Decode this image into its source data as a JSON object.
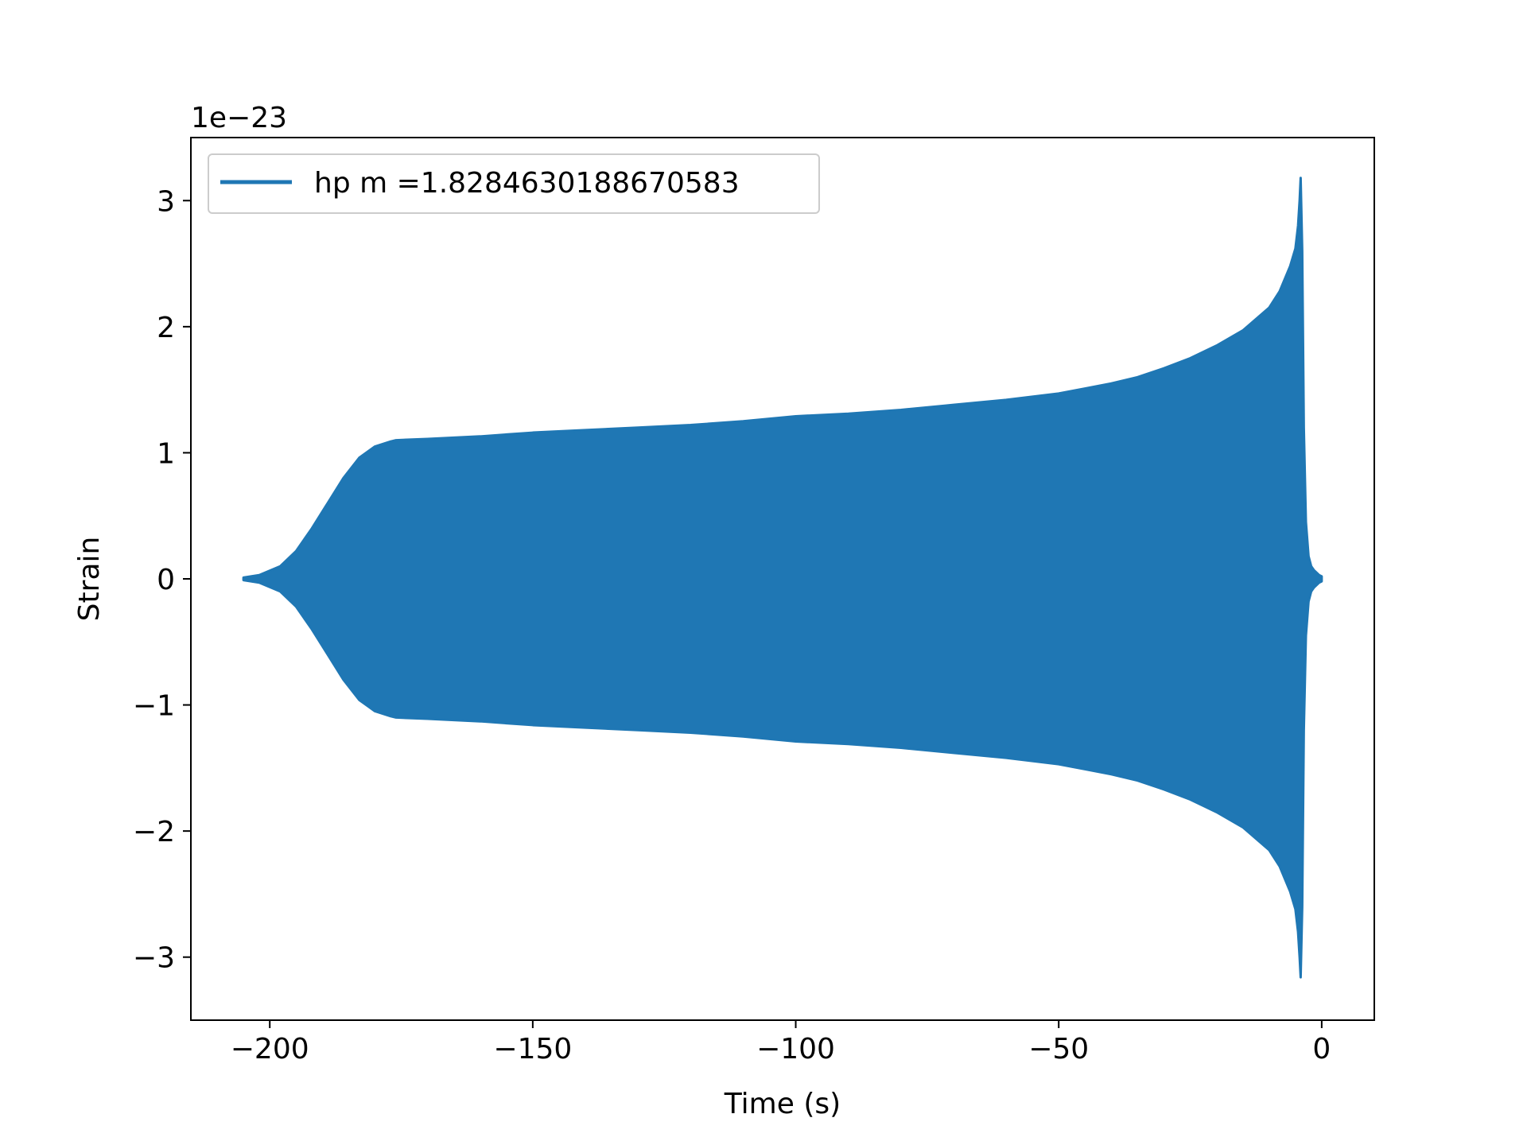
{
  "chart_data": {
    "type": "line",
    "xlabel": "Time (s)",
    "ylabel": "Strain",
    "y_offset_text": "1e−23",
    "xlim": [
      -215,
      10
    ],
    "ylim": [
      -3.5,
      3.5
    ],
    "x_ticks": [
      -200,
      -150,
      -100,
      -50,
      0
    ],
    "x_tick_labels": [
      "−200",
      "−150",
      "−100",
      "−50",
      "0"
    ],
    "y_ticks": [
      -3,
      -2,
      -1,
      0,
      1,
      2,
      3
    ],
    "y_tick_labels": [
      "−3",
      "−2",
      "−1",
      "0",
      "1",
      "2",
      "3"
    ],
    "grid": false,
    "legend_position": "upper-left",
    "series": [
      {
        "name": "hp m =1.8284630188670583",
        "color": "#1f77b4",
        "envelope": {
          "x": [
            -205,
            -202,
            -198,
            -195,
            -192,
            -189,
            -186,
            -183,
            -180,
            -177,
            -176,
            -170,
            -160,
            -150,
            -140,
            -130,
            -120,
            -110,
            -105,
            -100,
            -90,
            -80,
            -70,
            -60,
            -50,
            -45,
            -40,
            -35,
            -30,
            -25,
            -20,
            -15,
            -10,
            -8,
            -6,
            -5,
            -4.5,
            -4.2,
            -4,
            -3.7,
            -3.4,
            -3,
            -2.5,
            -2,
            -1.5,
            -1,
            -0.5,
            0
          ],
          "upper": [
            0.01,
            0.03,
            0.1,
            0.22,
            0.4,
            0.6,
            0.8,
            0.96,
            1.05,
            1.09,
            1.1,
            1.11,
            1.13,
            1.16,
            1.18,
            1.2,
            1.22,
            1.25,
            1.27,
            1.29,
            1.31,
            1.34,
            1.38,
            1.42,
            1.47,
            1.51,
            1.55,
            1.6,
            1.67,
            1.75,
            1.85,
            1.97,
            2.15,
            2.28,
            2.48,
            2.62,
            2.8,
            3.0,
            3.18,
            2.6,
            1.2,
            0.45,
            0.18,
            0.1,
            0.07,
            0.05,
            0.03,
            0.02
          ],
          "lower": [
            -0.01,
            -0.03,
            -0.1,
            -0.22,
            -0.4,
            -0.6,
            -0.8,
            -0.96,
            -1.05,
            -1.09,
            -1.1,
            -1.11,
            -1.13,
            -1.16,
            -1.18,
            -1.2,
            -1.22,
            -1.25,
            -1.27,
            -1.29,
            -1.31,
            -1.34,
            -1.38,
            -1.42,
            -1.47,
            -1.51,
            -1.55,
            -1.6,
            -1.67,
            -1.75,
            -1.85,
            -1.97,
            -2.15,
            -2.28,
            -2.48,
            -2.62,
            -2.8,
            -3.0,
            -3.16,
            -2.6,
            -1.2,
            -0.45,
            -0.18,
            -0.1,
            -0.07,
            -0.05,
            -0.03,
            -0.02
          ]
        }
      }
    ]
  }
}
